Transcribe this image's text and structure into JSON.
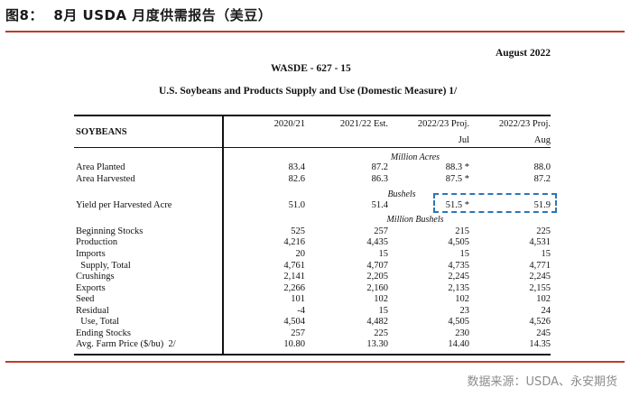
{
  "figure": {
    "title": "图8：  8月 USDA 月度供需报告（美豆）",
    "source": "数据来源：USDA、永安期货"
  },
  "report": {
    "date": "August 2022",
    "code": "WASDE - 627 - 15",
    "subtitle": "U.S. Soybeans and Products Supply and Use (Domestic Measure)  1/"
  },
  "table": {
    "section_label": "SOYBEANS",
    "columns": [
      {
        "line1": "2020/21",
        "line2": ""
      },
      {
        "line1": "2021/22 Est.",
        "line2": ""
      },
      {
        "line1": "2022/23 Proj.",
        "line2": "Jul"
      },
      {
        "line1": "2022/23 Proj.",
        "line2": "Aug"
      }
    ],
    "units": {
      "acres": "Million Acres",
      "yield": "Bushels",
      "bushels": "Million Bushels"
    },
    "rows": [
      {
        "label": "Area Planted",
        "values": [
          "83.4",
          "87.2",
          "88.3 *",
          "88.0"
        ]
      },
      {
        "label": "Area Harvested",
        "values": [
          "82.6",
          "86.3",
          "87.5 *",
          "87.2"
        ]
      },
      {
        "label": "Yield per Harvested Acre",
        "values": [
          "51.0",
          "51.4",
          "51.5 *",
          "51.9"
        ]
      },
      {
        "label": "Beginning Stocks",
        "values": [
          "525",
          "257",
          "215",
          "225"
        ]
      },
      {
        "label": "Production",
        "values": [
          "4,216",
          "4,435",
          "4,505",
          "4,531"
        ]
      },
      {
        "label": "Imports",
        "values": [
          "20",
          "15",
          "15",
          "15"
        ]
      },
      {
        "label": "  Supply, Total",
        "values": [
          "4,761",
          "4,707",
          "4,735",
          "4,771"
        ]
      },
      {
        "label": "Crushings",
        "values": [
          "2,141",
          "2,205",
          "2,245",
          "2,245"
        ]
      },
      {
        "label": "Exports",
        "values": [
          "2,266",
          "2,160",
          "2,135",
          "2,155"
        ]
      },
      {
        "label": "Seed",
        "values": [
          "101",
          "102",
          "102",
          "102"
        ]
      },
      {
        "label": "Residual",
        "values": [
          "-4",
          "15",
          "23",
          "24"
        ]
      },
      {
        "label": "  Use, Total",
        "values": [
          "4,504",
          "4,482",
          "4,505",
          "4,526"
        ]
      },
      {
        "label": "Ending Stocks",
        "values": [
          "257",
          "225",
          "230",
          "245"
        ]
      },
      {
        "label": "Avg. Farm Price ($/bu)  2/",
        "values": [
          "10.80",
          "13.30",
          "14.40",
          "14.35"
        ]
      }
    ]
  },
  "colors": {
    "rule": "#c0392b",
    "highlight_border": "#2e75b6"
  }
}
